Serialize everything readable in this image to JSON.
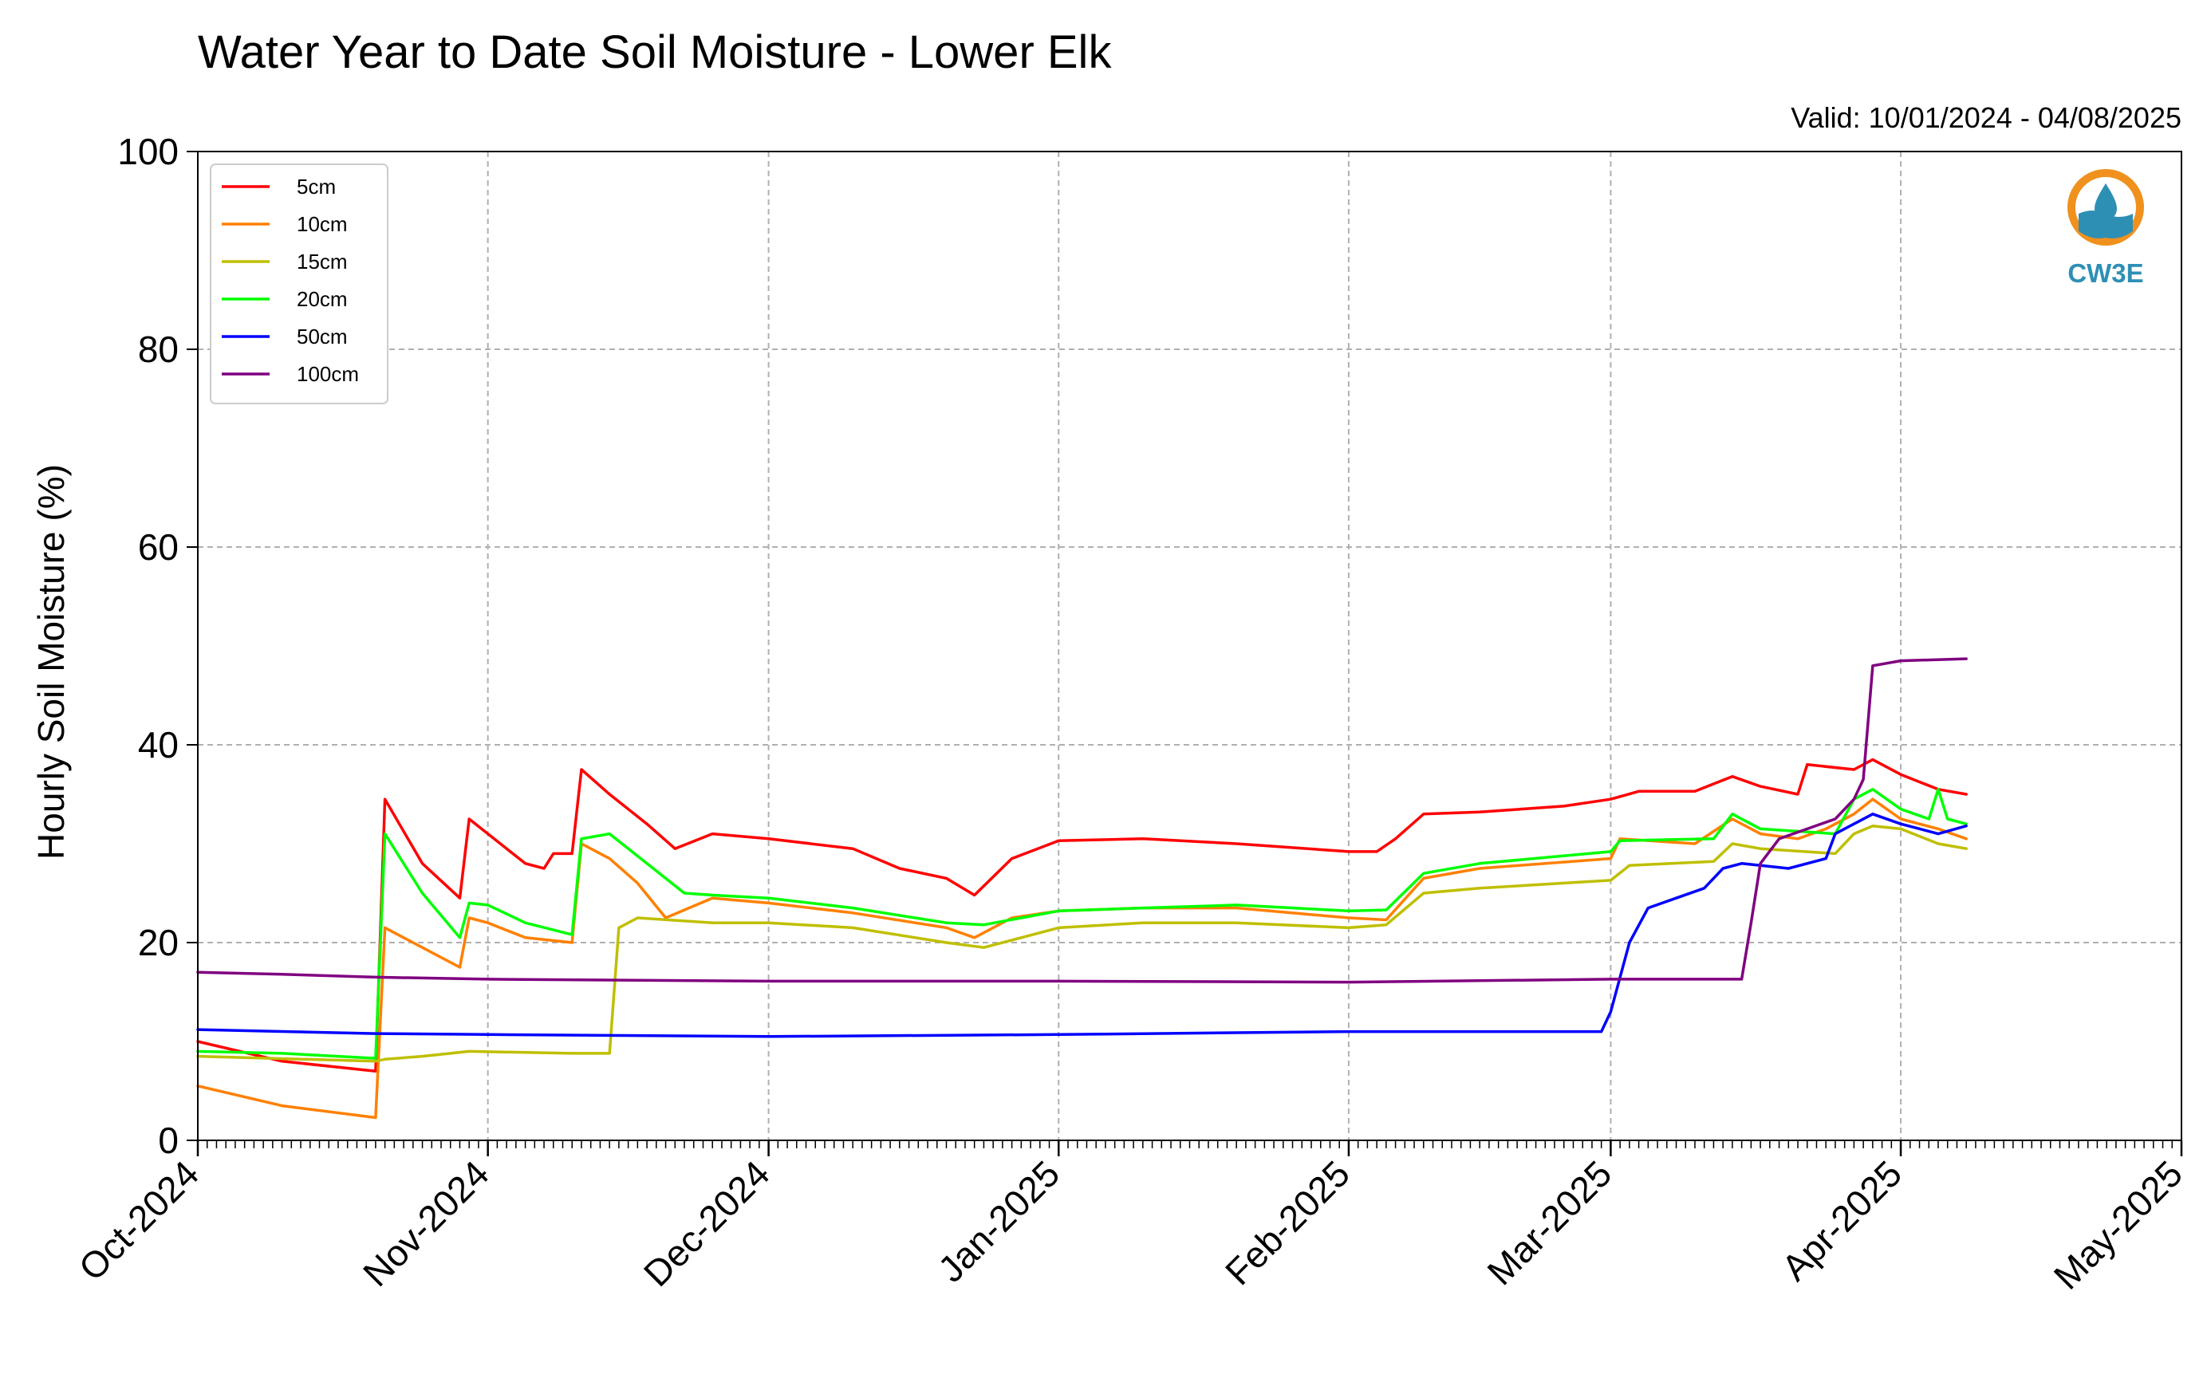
{
  "chart_data": {
    "type": "line",
    "title": "Water Year to Date Soil Moisture - Lower Elk",
    "subtitle": "Valid: 10/01/2024 - 04/08/2025",
    "ylabel": "Hourly Soil Moisture (%)",
    "ylim": [
      0,
      100
    ],
    "yticks": [
      "0",
      "20",
      "40",
      "60",
      "80",
      "100"
    ],
    "xlim": [
      "2024-10-01",
      "2025-05-01"
    ],
    "xticks": [
      {
        "date": "2024-10-01",
        "label": "Oct-2024"
      },
      {
        "date": "2024-11-01",
        "label": "Nov-2024"
      },
      {
        "date": "2024-12-01",
        "label": "Dec-2024"
      },
      {
        "date": "2025-01-01",
        "label": "Jan-2025"
      },
      {
        "date": "2025-02-01",
        "label": "Feb-2025"
      },
      {
        "date": "2025-03-01",
        "label": "Mar-2025"
      },
      {
        "date": "2025-04-01",
        "label": "Apr-2025"
      },
      {
        "date": "2025-05-01",
        "label": "May-2025"
      }
    ],
    "grid": true,
    "legend_position": "top-left",
    "series": [
      {
        "name": "5cm",
        "color": "#ff0000",
        "points": [
          [
            "2024-10-01",
            10
          ],
          [
            "2024-10-10",
            8
          ],
          [
            "2024-10-20",
            7
          ],
          [
            "2024-10-21",
            34.5
          ],
          [
            "2024-10-25",
            28
          ],
          [
            "2024-10-29",
            24.5
          ],
          [
            "2024-10-30",
            32.5
          ],
          [
            "2024-11-01",
            31
          ],
          [
            "2024-11-05",
            28
          ],
          [
            "2024-11-07",
            27.5
          ],
          [
            "2024-11-08",
            29
          ],
          [
            "2024-11-10",
            29
          ],
          [
            "2024-11-11",
            37.5
          ],
          [
            "2024-11-14",
            35
          ],
          [
            "2024-11-18",
            32
          ],
          [
            "2024-11-21",
            29.5
          ],
          [
            "2024-11-25",
            31
          ],
          [
            "2024-12-01",
            30.5
          ],
          [
            "2024-12-10",
            29.5
          ],
          [
            "2024-12-15",
            27.5
          ],
          [
            "2024-12-20",
            26.5
          ],
          [
            "2024-12-23",
            24.8
          ],
          [
            "2024-12-27",
            28.5
          ],
          [
            "2025-01-01",
            30.3
          ],
          [
            "2025-01-10",
            30.5
          ],
          [
            "2025-01-20",
            30
          ],
          [
            "2025-02-01",
            29.2
          ],
          [
            "2025-02-04",
            29.2
          ],
          [
            "2025-02-06",
            30.5
          ],
          [
            "2025-02-09",
            33
          ],
          [
            "2025-02-15",
            33.2
          ],
          [
            "2025-02-24",
            33.8
          ],
          [
            "2025-03-01",
            34.5
          ],
          [
            "2025-03-04",
            35.3
          ],
          [
            "2025-03-10",
            35.3
          ],
          [
            "2025-03-14",
            36.8
          ],
          [
            "2025-03-17",
            35.8
          ],
          [
            "2025-03-21",
            35
          ],
          [
            "2025-03-22",
            38
          ],
          [
            "2025-03-27",
            37.5
          ],
          [
            "2025-03-29",
            38.5
          ],
          [
            "2025-04-01",
            37
          ],
          [
            "2025-04-05",
            35.5
          ],
          [
            "2025-04-08",
            35
          ]
        ]
      },
      {
        "name": "10cm",
        "color": "#ff8000",
        "points": [
          [
            "2024-10-01",
            5.5
          ],
          [
            "2024-10-10",
            3.5
          ],
          [
            "2024-10-20",
            2.3
          ],
          [
            "2024-10-21",
            21.5
          ],
          [
            "2024-10-25",
            19.5
          ],
          [
            "2024-10-29",
            17.5
          ],
          [
            "2024-10-30",
            22.5
          ],
          [
            "2024-11-01",
            22
          ],
          [
            "2024-11-05",
            20.5
          ],
          [
            "2024-11-10",
            20
          ],
          [
            "2024-11-11",
            30
          ],
          [
            "2024-11-14",
            28.5
          ],
          [
            "2024-11-17",
            26
          ],
          [
            "2024-11-20",
            22.5
          ],
          [
            "2024-11-25",
            24.5
          ],
          [
            "2024-12-01",
            24
          ],
          [
            "2024-12-10",
            23
          ],
          [
            "2024-12-20",
            21.5
          ],
          [
            "2024-12-23",
            20.5
          ],
          [
            "2024-12-27",
            22.5
          ],
          [
            "2025-01-01",
            23.2
          ],
          [
            "2025-01-10",
            23.5
          ],
          [
            "2025-01-20",
            23.5
          ],
          [
            "2025-02-01",
            22.5
          ],
          [
            "2025-02-05",
            22.3
          ],
          [
            "2025-02-09",
            26.5
          ],
          [
            "2025-02-15",
            27.5
          ],
          [
            "2025-03-01",
            28.5
          ],
          [
            "2025-03-02",
            30.5
          ],
          [
            "2025-03-10",
            30
          ],
          [
            "2025-03-14",
            32.5
          ],
          [
            "2025-03-17",
            31
          ],
          [
            "2025-03-21",
            30.5
          ],
          [
            "2025-03-24",
            31.5
          ],
          [
            "2025-03-27",
            33
          ],
          [
            "2025-03-29",
            34.5
          ],
          [
            "2025-04-01",
            32.5
          ],
          [
            "2025-04-05",
            31.5
          ],
          [
            "2025-04-08",
            30.5
          ]
        ]
      },
      {
        "name": "15cm",
        "color": "#bfbf00",
        "points": [
          [
            "2024-10-01",
            8.5
          ],
          [
            "2024-10-20",
            8
          ],
          [
            "2024-10-21",
            8.2
          ],
          [
            "2024-10-25",
            8.5
          ],
          [
            "2024-10-30",
            9
          ],
          [
            "2024-11-10",
            8.8
          ],
          [
            "2024-11-14",
            8.8
          ],
          [
            "2024-11-15",
            21.5
          ],
          [
            "2024-11-17",
            22.5
          ],
          [
            "2024-11-25",
            22
          ],
          [
            "2024-12-01",
            22
          ],
          [
            "2024-12-10",
            21.5
          ],
          [
            "2024-12-20",
            20
          ],
          [
            "2024-12-24",
            19.5
          ],
          [
            "2025-01-01",
            21.5
          ],
          [
            "2025-01-10",
            22
          ],
          [
            "2025-01-20",
            22
          ],
          [
            "2025-02-01",
            21.5
          ],
          [
            "2025-02-05",
            21.8
          ],
          [
            "2025-02-09",
            25
          ],
          [
            "2025-02-15",
            25.5
          ],
          [
            "2025-03-01",
            26.3
          ],
          [
            "2025-03-03",
            27.8
          ],
          [
            "2025-03-12",
            28.2
          ],
          [
            "2025-03-14",
            30
          ],
          [
            "2025-03-17",
            29.5
          ],
          [
            "2025-03-25",
            29
          ],
          [
            "2025-03-27",
            31
          ],
          [
            "2025-03-29",
            31.8
          ],
          [
            "2025-04-01",
            31.5
          ],
          [
            "2025-04-05",
            30
          ],
          [
            "2025-04-08",
            29.5
          ]
        ]
      },
      {
        "name": "20cm",
        "color": "#00ff00",
        "points": [
          [
            "2024-10-01",
            9
          ],
          [
            "2024-10-10",
            8.8
          ],
          [
            "2024-10-20",
            8.3
          ],
          [
            "2024-10-21",
            31
          ],
          [
            "2024-10-25",
            25
          ],
          [
            "2024-10-29",
            20.5
          ],
          [
            "2024-10-30",
            24
          ],
          [
            "2024-11-01",
            23.8
          ],
          [
            "2024-11-05",
            22
          ],
          [
            "2024-11-10",
            20.8
          ],
          [
            "2024-11-11",
            30.5
          ],
          [
            "2024-11-14",
            31
          ],
          [
            "2024-11-18",
            28
          ],
          [
            "2024-11-22",
            25
          ],
          [
            "2024-11-25",
            24.8
          ],
          [
            "2024-12-01",
            24.5
          ],
          [
            "2024-12-10",
            23.5
          ],
          [
            "2024-12-20",
            22
          ],
          [
            "2024-12-24",
            21.8
          ],
          [
            "2025-01-01",
            23.2
          ],
          [
            "2025-01-10",
            23.5
          ],
          [
            "2025-01-20",
            23.8
          ],
          [
            "2025-02-01",
            23.2
          ],
          [
            "2025-02-05",
            23.3
          ],
          [
            "2025-02-09",
            27
          ],
          [
            "2025-02-15",
            28
          ],
          [
            "2025-03-01",
            29.2
          ],
          [
            "2025-03-02",
            30.3
          ],
          [
            "2025-03-12",
            30.5
          ],
          [
            "2025-03-14",
            33
          ],
          [
            "2025-03-17",
            31.5
          ],
          [
            "2025-03-25",
            31
          ],
          [
            "2025-03-27",
            34.5
          ],
          [
            "2025-03-29",
            35.5
          ],
          [
            "2025-04-01",
            33.5
          ],
          [
            "2025-04-04",
            32.5
          ],
          [
            "2025-04-05",
            35.5
          ],
          [
            "2025-04-06",
            32.5
          ],
          [
            "2025-04-08",
            32
          ]
        ]
      },
      {
        "name": "50cm",
        "color": "#0000ff",
        "points": [
          [
            "2024-10-01",
            11.2
          ],
          [
            "2024-10-20",
            10.8
          ],
          [
            "2024-11-01",
            10.7
          ],
          [
            "2024-12-01",
            10.5
          ],
          [
            "2025-01-01",
            10.7
          ],
          [
            "2025-02-01",
            11
          ],
          [
            "2025-02-28",
            11
          ],
          [
            "2025-03-01",
            13
          ],
          [
            "2025-03-03",
            20
          ],
          [
            "2025-03-05",
            23.5
          ],
          [
            "2025-03-08",
            24.5
          ],
          [
            "2025-03-11",
            25.5
          ],
          [
            "2025-03-13",
            27.5
          ],
          [
            "2025-03-15",
            28
          ],
          [
            "2025-03-20",
            27.5
          ],
          [
            "2025-03-24",
            28.5
          ],
          [
            "2025-03-25",
            31
          ],
          [
            "2025-03-29",
            33
          ],
          [
            "2025-04-01",
            32
          ],
          [
            "2025-04-05",
            31
          ],
          [
            "2025-04-08",
            31.8
          ]
        ]
      },
      {
        "name": "100cm",
        "color": "#800080",
        "points": [
          [
            "2024-10-01",
            17
          ],
          [
            "2024-10-10",
            16.8
          ],
          [
            "2024-10-20",
            16.5
          ],
          [
            "2024-11-01",
            16.3
          ],
          [
            "2024-12-01",
            16.1
          ],
          [
            "2025-01-01",
            16.1
          ],
          [
            "2025-02-01",
            16
          ],
          [
            "2025-03-01",
            16.3
          ],
          [
            "2025-03-15",
            16.3
          ],
          [
            "2025-03-16",
            22
          ],
          [
            "2025-03-17",
            28
          ],
          [
            "2025-03-19",
            30.5
          ],
          [
            "2025-03-22",
            31.5
          ],
          [
            "2025-03-25",
            32.5
          ],
          [
            "2025-03-27",
            34.5
          ],
          [
            "2025-03-28",
            36.5
          ],
          [
            "2025-03-29",
            48
          ],
          [
            "2025-04-01",
            48.5
          ],
          [
            "2025-04-08",
            48.7
          ]
        ]
      }
    ]
  },
  "logo": {
    "text": "CW3E"
  }
}
